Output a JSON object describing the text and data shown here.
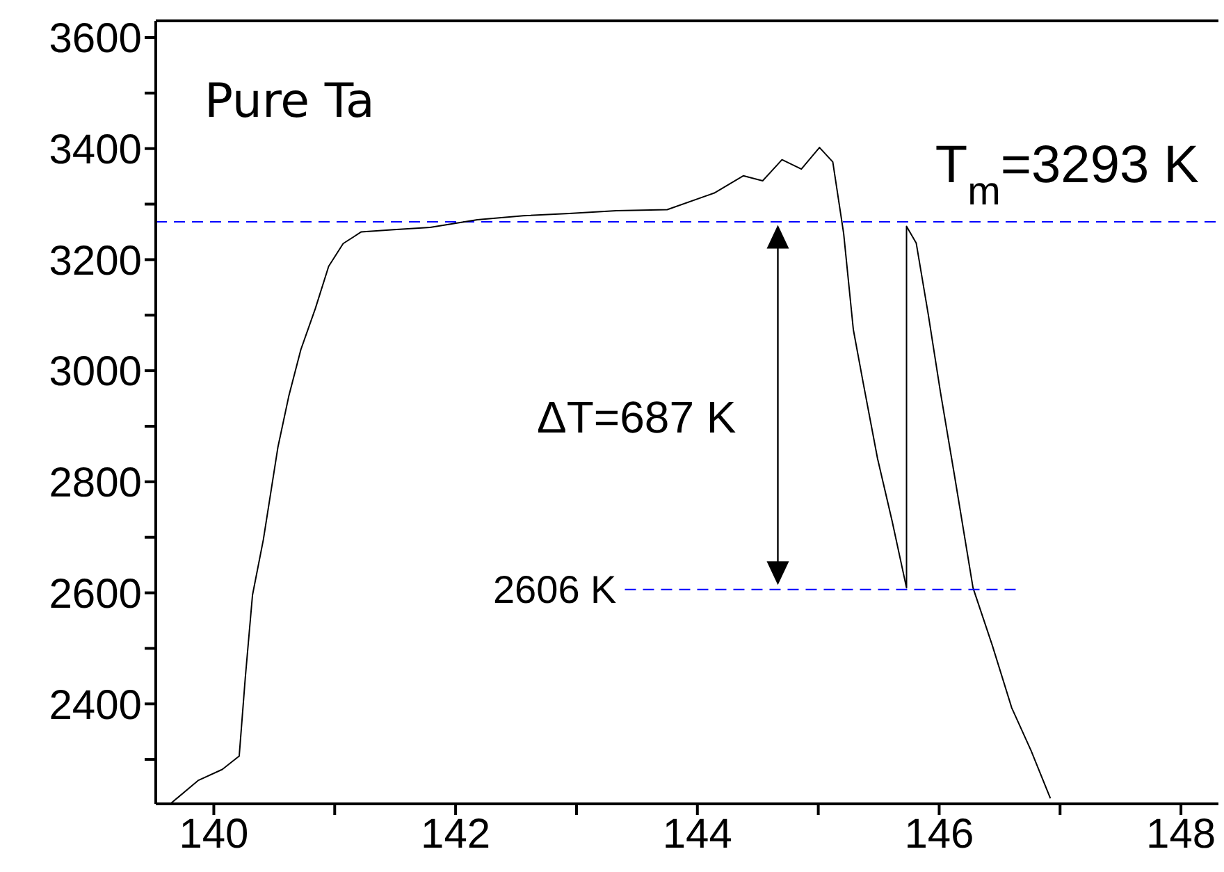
{
  "chart_data": {
    "type": "line",
    "title": "Pure Ta",
    "xlim": [
      139.52,
      148.31
    ],
    "ylim": [
      2220,
      3630
    ],
    "xticks": [
      140,
      {
        "value": 141,
        "label": null
      },
      142,
      {
        "value": 143,
        "label": null
      },
      144,
      {
        "value": 145,
        "label": null
      },
      146,
      {
        "value": 147,
        "label": null
      },
      148
    ],
    "yticks": [
      {
        "value": 2300,
        "label": null
      },
      2400,
      {
        "value": 2500,
        "label": null
      },
      2600,
      {
        "value": 2700,
        "label": null
      },
      2800,
      {
        "value": 2900,
        "label": null
      },
      3000,
      {
        "value": 3100,
        "label": null
      },
      3200,
      {
        "value": 3300,
        "label": null
      },
      3400,
      {
        "value": 3500,
        "label": null
      },
      3600
    ],
    "marker": "none",
    "series": [
      {
        "color": "#000000",
        "line_style": "solid",
        "x": [
          139.64,
          139.87,
          140.07,
          140.21,
          140.26,
          140.32,
          140.41,
          140.53,
          140.62,
          140.72,
          140.84,
          140.95,
          141.07,
          141.22,
          141.49,
          141.79,
          142.18,
          142.56,
          142.94,
          143.33,
          143.75,
          144.14,
          144.38,
          144.54,
          144.7,
          144.86,
          145.01,
          145.12,
          145.21,
          145.29,
          145.37,
          145.49,
          145.61,
          145.73,
          145.73,
          145.81,
          145.91,
          146.01,
          146.13,
          146.28,
          146.44,
          146.6,
          146.76,
          146.92
        ],
        "values": [
          2220,
          2262,
          2282,
          2306,
          2446,
          2596,
          2696,
          2862,
          2954,
          3038,
          3112,
          3188,
          3229,
          3250,
          3254,
          3258,
          3272,
          3279,
          3283,
          3288,
          3290,
          3320,
          3351,
          3342,
          3380,
          3363,
          3402,
          3376,
          3247,
          3074,
          2980,
          2842,
          2730,
          2609,
          3260,
          3230,
          3101,
          2962,
          2807,
          2609,
          2505,
          2393,
          2316,
          2230
        ]
      },
      {
        "color": "#0000ff",
        "line_style": "dashed",
        "x": [
          143.4,
          146.64
        ],
        "values": [
          2606,
          2606
        ]
      }
    ],
    "ref_lines": [
      {
        "axis": "y",
        "value": 3268,
        "color": "#0000ff",
        "line_style": "dashed"
      }
    ],
    "annotations": [
      "T$_{m}$=3293 K",
      "ΔT=687 K",
      {
        "text": "2606 K",
        "x": 143.4,
        "y": 2606
      }
    ]
  }
}
